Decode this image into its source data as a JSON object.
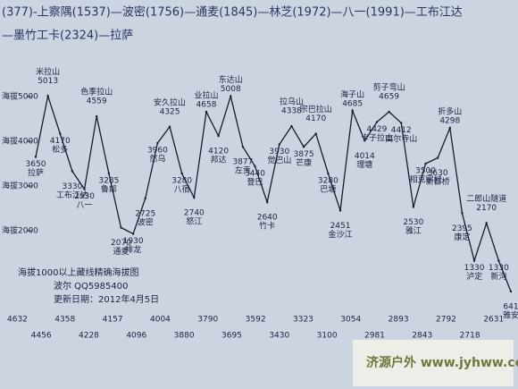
{
  "chart_data": {
    "type": "line",
    "header": [
      "(377)-上察隅(1537)—波密(1756)—通麦(1845)—林芝(1972)—八一(1991)—工布江达",
      "—墨竹工卡(2324)—拉萨"
    ],
    "categories": [
      "拉萨",
      "米拉山",
      "松多",
      "工布江达",
      "八一",
      "色季拉山",
      "鲁郎",
      "通麦",
      "排龙",
      "波密",
      "然乌",
      "安久拉山",
      "八宿",
      "怒江",
      "业拉山",
      "邦达",
      "东达山",
      "左贡",
      "登巴",
      "竹卡",
      "觉巴山",
      "拉乌山",
      "芒康",
      "宗巴拉山",
      "巴塘",
      "金沙江",
      "海子山",
      "理塘",
      "卡子拉山",
      "剪子弯山",
      "高尔寺山",
      "雅江",
      "相克宗村",
      "新都桥",
      "折多山",
      "康定",
      "泸定",
      "二郎山隧道",
      "新沟",
      "雅安"
    ],
    "values": [
      3650,
      5013,
      4170,
      3330,
      2930,
      4559,
      3285,
      2070,
      1930,
      2725,
      3960,
      4325,
      3280,
      2740,
      4658,
      4120,
      5008,
      3877,
      3440,
      2640,
      3930,
      4338,
      3875,
      4170,
      3280,
      2451,
      4685,
      4014,
      4429,
      4659,
      4412,
      2530,
      3500,
      3630,
      4298,
      2395,
      1330,
      2170,
      1330,
      641
    ],
    "color": "#1a1a2e",
    "ylim": [
      500,
      5400
    ],
    "yticks": [
      {
        "value": 5000,
        "label": "海拔5000"
      },
      {
        "value": 4000,
        "label": "海拔4000"
      },
      {
        "value": 3000,
        "label": "海拔3000"
      },
      {
        "value": 2000,
        "label": "海拔2000"
      }
    ],
    "annotations": [
      "海拔1000以上藏线精确海拔图",
      "波尔 QQ5985400",
      "更新日期：2012年4月5日"
    ],
    "distance_markers": [
      "4632",
      "4456",
      "4358",
      "4228",
      "4157",
      "4096",
      "4004",
      "3880",
      "3790",
      "3695",
      "3592",
      "3430",
      "3323",
      "3100",
      "3054",
      "2981",
      "2893",
      "2843",
      "2792",
      "2718",
      "2631"
    ],
    "watermark": "济源户外 www.jyhww.com"
  }
}
